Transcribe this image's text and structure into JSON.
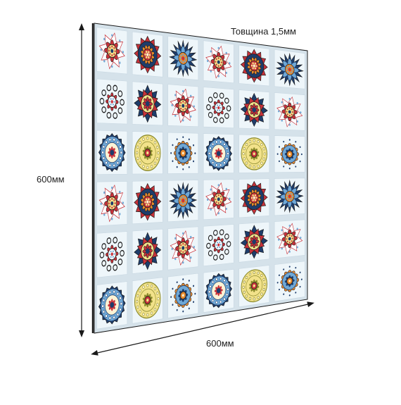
{
  "labels": {
    "thickness": "Товщина 1,5мм",
    "height": "600мм",
    "width": "600мм"
  },
  "panel": {
    "rows": 6,
    "cols": 6,
    "tile_background": "#eef6fa",
    "grout_color": "#d5e2ea",
    "edge_color": "#1a1a1a",
    "palette": {
      "red": "#c8323a",
      "navy": "#1e3d6b",
      "sky": "#6fa8d6",
      "orange": "#e88a2e",
      "yellow": "#f2e28a",
      "olive": "#8b8a2c",
      "black": "#1b1b1b",
      "cream": "#fbf3d5"
    },
    "tile_patterns": [
      [
        "star-red",
        "mandala-red-navy",
        "mandala-blue-spiky",
        "star-red",
        "mandala-red-navy",
        "mandala-blue-spiky"
      ],
      [
        "swirl-black",
        "star-navy-yellow",
        "star-red",
        "swirl-black",
        "star-navy-yellow",
        "star-red"
      ],
      [
        "circle-navy-blue",
        "circle-yellow-olive",
        "mandala-orange-blue",
        "circle-navy-blue",
        "circle-yellow-olive",
        "mandala-orange-blue"
      ],
      [
        "star-red",
        "mandala-red-navy",
        "mandala-blue-spiky",
        "star-red",
        "mandala-red-navy",
        "mandala-blue-spiky"
      ],
      [
        "swirl-black",
        "star-navy-yellow",
        "star-red",
        "swirl-black",
        "star-navy-yellow",
        "star-red"
      ],
      [
        "circle-navy-blue",
        "circle-yellow-olive",
        "mandala-orange-blue",
        "circle-navy-blue",
        "circle-yellow-olive",
        "mandala-orange-blue"
      ]
    ]
  },
  "arrows": {
    "color": "#1a1a1a"
  }
}
